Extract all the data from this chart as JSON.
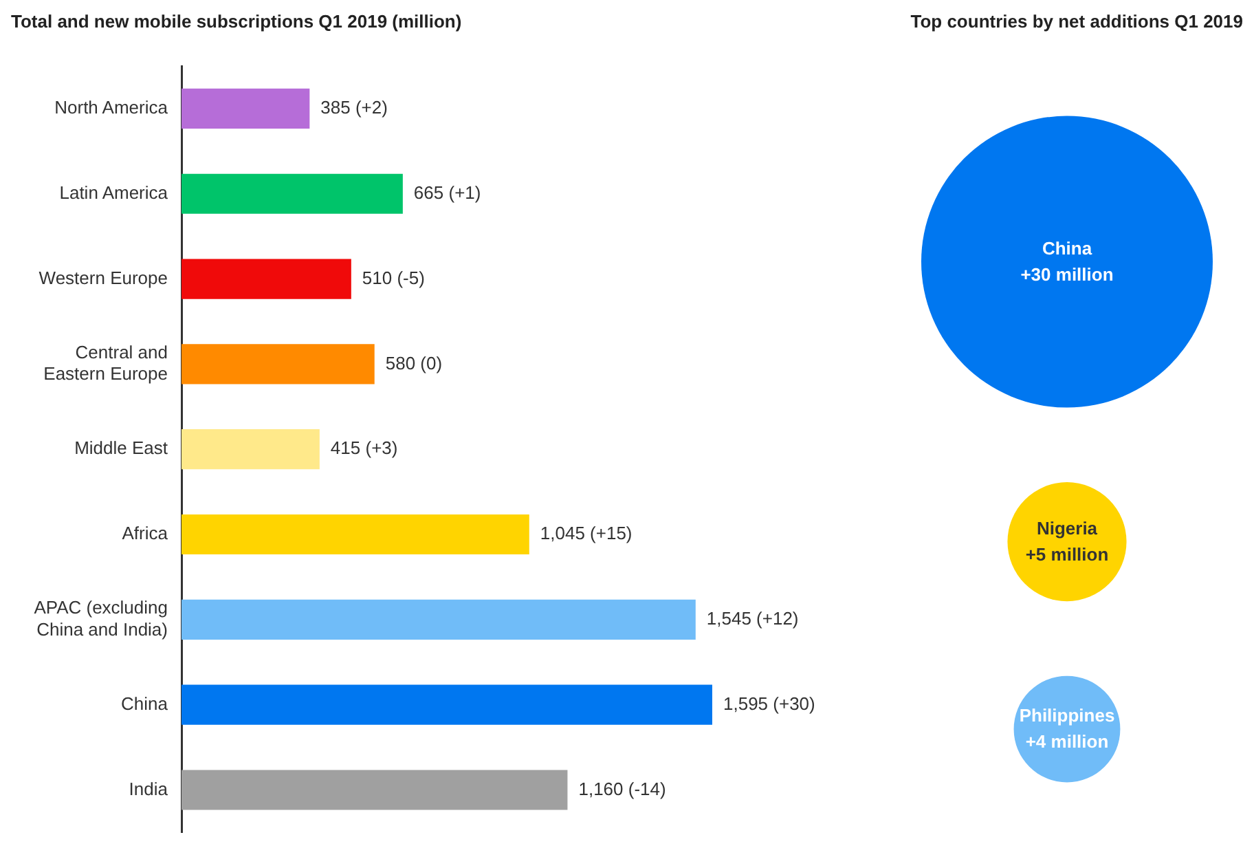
{
  "chart_data": [
    {
      "type": "bar",
      "orientation": "horizontal",
      "title": "Total and new mobile subscriptions Q1 2019 (million)",
      "categories": [
        "North America",
        "Latin America",
        "Western Europe",
        "Central and Eastern Europe",
        "Middle East",
        "Africa",
        "APAC (excluding China and India)",
        "China",
        "India"
      ],
      "values": [
        385,
        665,
        510,
        580,
        415,
        1045,
        1545,
        1595,
        1160
      ],
      "colors": [
        "#b66dd8",
        "#00c46a",
        "#f00a0a",
        "#ff8a00",
        "#ffe98a",
        "#ffd400",
        "#70bcf8",
        "#0077f0",
        "#a0a0a0"
      ],
      "value_labels": [
        "385 (+2)",
        "665 (+1)",
        "510 (-5)",
        "580 (0)",
        "415 (+3)",
        "1,045 (+15)",
        "1,545 (+12)",
        "1,595 (+30)",
        "1,160 (-14)"
      ],
      "tick_labels": "y",
      "grid": false,
      "legend": false
    },
    {
      "type": "other",
      "title": "Top countries by net additions Q1 2019",
      "categories": [
        "China",
        "Nigeria",
        "Philippines"
      ],
      "values": [
        30,
        5,
        4
      ],
      "value_labels": [
        "+30 million",
        "+5 million",
        "+4 million"
      ],
      "colors": [
        "#0077f0",
        "#ffd400",
        "#70bcf8"
      ]
    }
  ]
}
